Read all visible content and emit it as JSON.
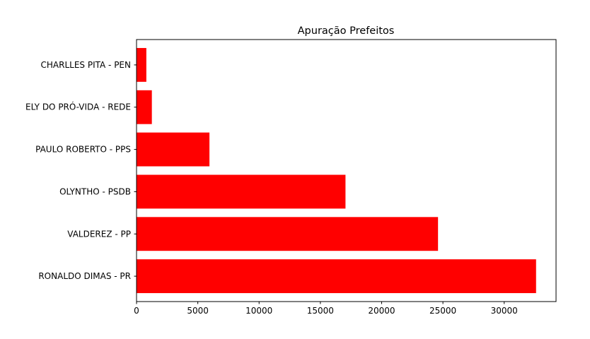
{
  "chart_data": {
    "type": "bar",
    "orientation": "horizontal",
    "title": "Apuração Prefeitos",
    "xlabel": "",
    "ylabel": "",
    "categories": [
      "RONALDO DIMAS - PR",
      "VALDEREZ - PP",
      "OLYNTHO - PSDB",
      "PAULO ROBERTO - PPS",
      "ELY DO PRÓ-VIDA - REDE",
      "CHARLLES PITA - PEN"
    ],
    "values": [
      32600,
      24600,
      17050,
      5950,
      1250,
      800
    ],
    "xlim": [
      0,
      34230
    ],
    "xticks": [
      0,
      5000,
      10000,
      15000,
      20000,
      25000,
      30000
    ],
    "bar_color": "#ff0000",
    "grid": false,
    "legend": "none"
  }
}
